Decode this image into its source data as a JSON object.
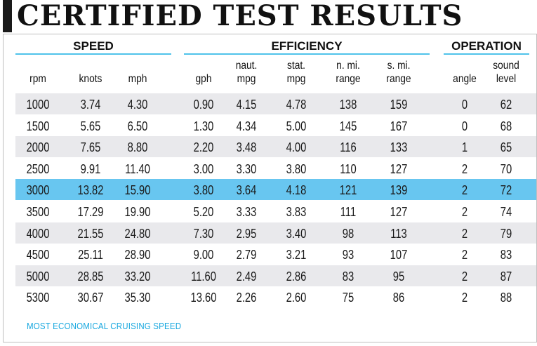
{
  "title": "CERTIFIED TEST RESULTS",
  "groups": {
    "speed": "SPEED",
    "efficiency": "EFFICIENCY",
    "operation": "OPERATION"
  },
  "columns": [
    [
      "rpm"
    ],
    [
      "knots"
    ],
    [
      "mph"
    ],
    [
      "gph"
    ],
    [
      "naut.",
      "mpg"
    ],
    [
      "stat.",
      "mpg"
    ],
    [
      "n. mi.",
      "range"
    ],
    [
      "s. mi.",
      "range"
    ],
    [
      "angle"
    ],
    [
      "sound",
      "level"
    ]
  ],
  "rows": [
    [
      "1000",
      "3.74",
      "4.30",
      "0.90",
      "4.15",
      "4.78",
      "138",
      "159",
      "0",
      "62"
    ],
    [
      "1500",
      "5.65",
      "6.50",
      "1.30",
      "4.34",
      "5.00",
      "145",
      "167",
      "0",
      "68"
    ],
    [
      "2000",
      "7.65",
      "8.80",
      "2.20",
      "3.48",
      "4.00",
      "116",
      "133",
      "1",
      "65"
    ],
    [
      "2500",
      "9.91",
      "11.40",
      "3.00",
      "3.30",
      "3.80",
      "110",
      "127",
      "2",
      "70"
    ],
    [
      "3000",
      "13.82",
      "15.90",
      "3.80",
      "3.64",
      "4.18",
      "121",
      "139",
      "2",
      "72"
    ],
    [
      "3500",
      "17.29",
      "19.90",
      "5.20",
      "3.33",
      "3.83",
      "111",
      "127",
      "2",
      "74"
    ],
    [
      "4000",
      "21.55",
      "24.80",
      "7.30",
      "2.95",
      "3.40",
      "98",
      "113",
      "2",
      "79"
    ],
    [
      "4500",
      "25.11",
      "28.90",
      "9.00",
      "2.79",
      "3.21",
      "93",
      "107",
      "2",
      "83"
    ],
    [
      "5000",
      "28.85",
      "33.20",
      "11.60",
      "2.49",
      "2.86",
      "83",
      "95",
      "2",
      "87"
    ],
    [
      "5300",
      "30.67",
      "35.30",
      "13.60",
      "2.26",
      "2.60",
      "75",
      "86",
      "2",
      "88"
    ]
  ],
  "highlight_row": 4,
  "footnote": "MOST ECONOMICAL CRUISING SPEED",
  "colors": {
    "accent": "#4fc3ea",
    "highlight": "#68c6f0",
    "shade": "#e9e9ec",
    "footnote": "#16a7df"
  }
}
